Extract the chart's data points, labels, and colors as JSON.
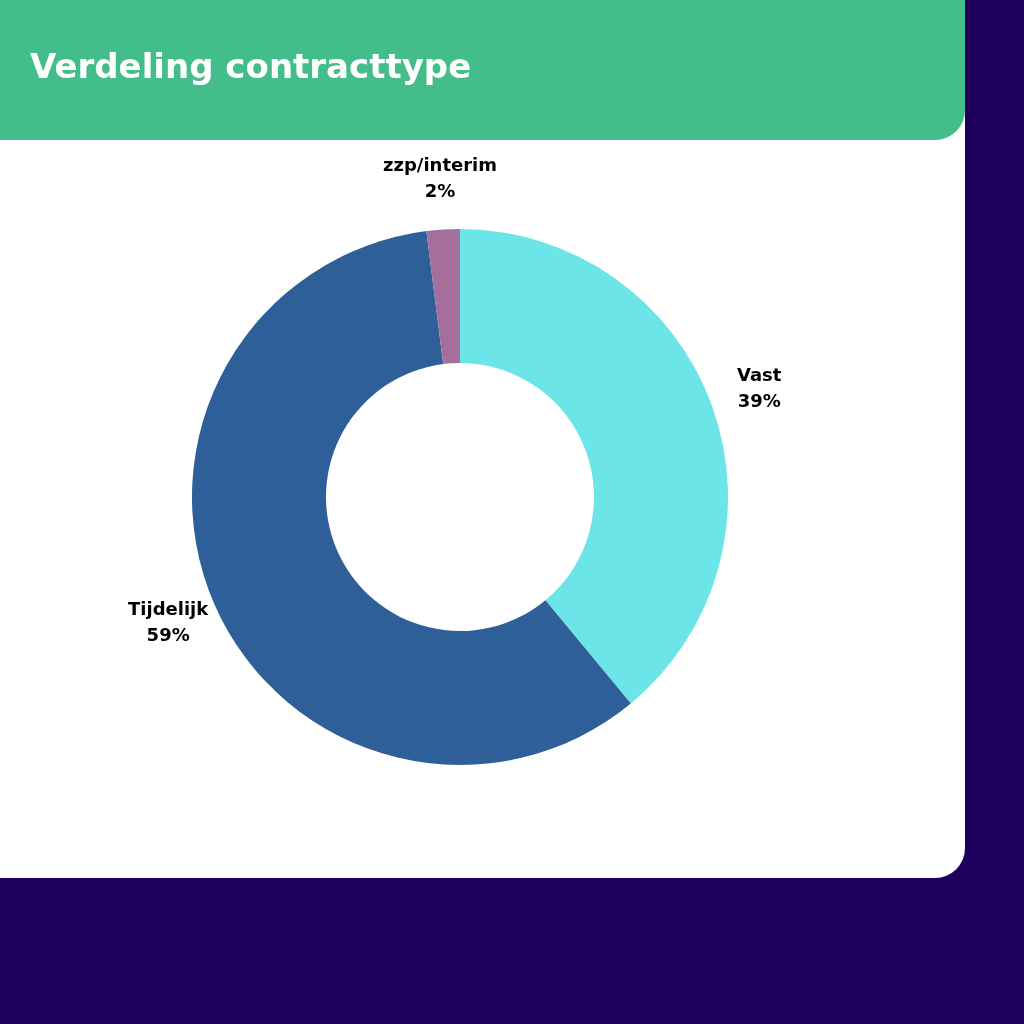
{
  "chart_data": {
    "type": "donut",
    "title": "Verdeling contracttype",
    "categories": [
      "Vast",
      "Tijdelijk",
      "zzp/interim"
    ],
    "values": [
      39,
      59,
      2
    ],
    "value_labels": [
      "39%",
      "59%",
      "2%"
    ],
    "colors": [
      "#6ce5e8",
      "#2e5f98",
      "#a46f9a"
    ],
    "legend": false
  }
}
